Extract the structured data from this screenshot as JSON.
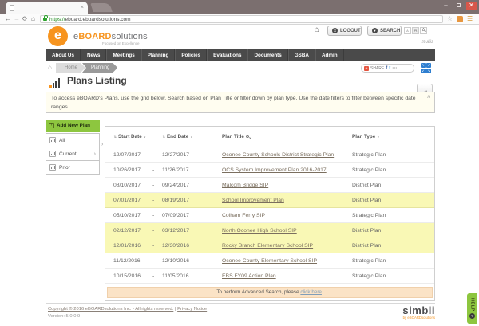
{
  "browser": {
    "url_scheme": "https://",
    "url_host": "eboard.eboardsolutions.com"
  },
  "icons": {
    "back": "←",
    "forward": "→",
    "reload": "⟳",
    "home": "⌂",
    "star": "☆",
    "menu": "☰",
    "tab_close": "×",
    "win_min": "–",
    "win_close": "✕",
    "sort": "⇅",
    "dropdown": "∨",
    "collapse": "∧",
    "arrow_right": "›",
    "pencil": "✎",
    "plus": "+",
    "help_q": "?",
    "logout_glyph": "✕",
    "search_glyph": "▼",
    "expand_nw": "↖",
    "expand_ne": "↗",
    "expand_sw": "↙",
    "expand_se": "↘",
    "share_plus": "+",
    "fb": "f",
    "tw": "t",
    "more": "⋯",
    "brand_e_mark": "e"
  },
  "header": {
    "brand_e": "e",
    "brand_board": "BOARD",
    "brand_solutions": "solutions",
    "tagline": "Focused on Excellence",
    "logout_label": "LOGOUT",
    "search_label": "SEARCH",
    "font_small": "A",
    "font_medium": "A",
    "font_large": "A",
    "username": "mullis"
  },
  "nav": {
    "items": [
      "About Us",
      "News",
      "Meetings",
      "Planning",
      "Policies",
      "Evaluations",
      "Documents",
      "GSBA",
      "Admin"
    ]
  },
  "breadcrumb": {
    "items": [
      "Home",
      "Planning"
    ]
  },
  "share": {
    "label": "SHARE"
  },
  "page": {
    "title": "Plans Listing",
    "instructions": "To access eBOARD's Plans, use the grid below. Search based on Plan Title or filter down by plan type. Use the date filters to filter between specific date ranges."
  },
  "sidebar": {
    "add_new_label": "Add New Plan",
    "items": [
      {
        "label": "All",
        "has_arrow": false
      },
      {
        "label": "Current",
        "has_arrow": true
      },
      {
        "label": "Prior",
        "has_arrow": false
      }
    ]
  },
  "table": {
    "columns": [
      {
        "label": "Start Date"
      },
      {
        "label": "End Date"
      },
      {
        "label": "Plan Title"
      },
      {
        "label": "Plan Type"
      }
    ],
    "date_separator": "-",
    "rows": [
      {
        "start": "12/07/2017",
        "end": "12/27/2017",
        "title": "Oconee County Schools District Strategic Plan",
        "type": "Strategic Plan",
        "highlight": false
      },
      {
        "start": "10/26/2017",
        "end": "11/26/2017",
        "title": "OCS System Improvement Plan 2016-2017",
        "type": "Strategic Plan",
        "highlight": false
      },
      {
        "start": "08/10/2017",
        "end": "09/24/2017",
        "title": "Malcom Bridge SIP",
        "type": "District Plan",
        "highlight": false
      },
      {
        "start": "07/01/2017",
        "end": "08/19/2017",
        "title": "School Improvement Plan",
        "type": "District Plan",
        "highlight": true
      },
      {
        "start": "05/10/2017",
        "end": "07/09/2017",
        "title": "Colham Ferry SIP",
        "type": "Strategic Plan",
        "highlight": false
      },
      {
        "start": "02/12/2017",
        "end": "03/12/2017",
        "title": "North Oconee High School SIP",
        "type": "District Plan",
        "highlight": true
      },
      {
        "start": "12/01/2016",
        "end": "12/30/2016",
        "title": "Rocky Branch Elementary School SIP",
        "type": "District Plan",
        "highlight": true
      },
      {
        "start": "11/12/2016",
        "end": "12/10/2016",
        "title": "Oconee County Elementary School SIP",
        "type": "Strategic Plan",
        "highlight": false
      },
      {
        "start": "10/15/2016",
        "end": "11/05/2016",
        "title": "EBS FY09 Action Plan",
        "type": "Strategic Plan",
        "highlight": false
      }
    ],
    "advanced_prefix": "To perform Advanced Search, please ",
    "advanced_link": "click here",
    "advanced_suffix": "."
  },
  "footer": {
    "copyright_link": "Copyright © 2016 eBOARDsolutions Inc. - All rights reserved.",
    "separator": "|",
    "privacy_link": "Privacy Notice",
    "version": "Version: 5.0.0.9",
    "brand": "simbli",
    "brand_sub": "by eBOARDsolutions"
  },
  "help": {
    "label": "HELP"
  },
  "colors": {
    "accent_orange": "#f7941e",
    "green": "#8dc63f",
    "nav_gray": "#4a4a4a",
    "row_highlight": "#f9f8b5",
    "advanced_peach": "#fbe3c6"
  }
}
